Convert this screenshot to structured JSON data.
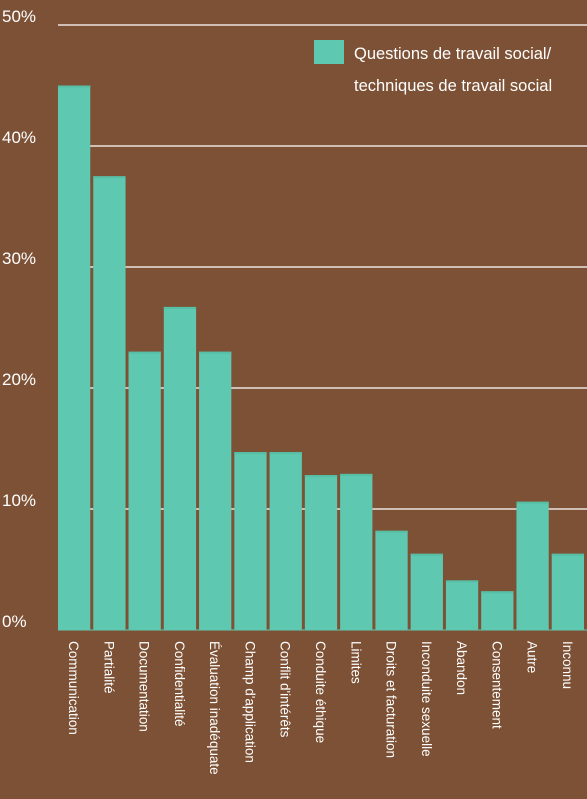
{
  "chart_data": {
    "type": "bar",
    "ylim": [
      0,
      50
    ],
    "y_ticks": [
      "50%",
      "40%",
      "30%",
      "20%",
      "10%",
      "0%"
    ],
    "y_tick_values": [
      50,
      40,
      30,
      20,
      10,
      0
    ],
    "grid": true,
    "legend_position": "top-right",
    "categories": [
      "Communication",
      "Partialité",
      "Documentation",
      "Confidentialité",
      "Évaluation inadéquate",
      "Champ d'application",
      "Conflit d'intérêts",
      "Conduite éthique",
      "Limites",
      "Droits et facturation",
      "Inconduite sexuelle",
      "Abandon",
      "Consentement",
      "Autre",
      "Inconnu"
    ],
    "series": [
      {
        "name": "Questions de travail social/ techniques de travail social",
        "name_lines": [
          "Questions de travail social/",
          "techniques de travail social"
        ],
        "color": "#5ec9b0",
        "values": [
          45,
          37.5,
          23,
          26.7,
          23,
          14.7,
          14.7,
          12.8,
          12.9,
          8.2,
          6.3,
          4.1,
          3.2,
          10.6,
          6.3
        ]
      }
    ],
    "colors": {
      "background": "#7d5135",
      "bar": "#5ec9b0",
      "bar_top": "#56bfa6",
      "grid": "#ffffff",
      "text": "#ffffff"
    }
  }
}
